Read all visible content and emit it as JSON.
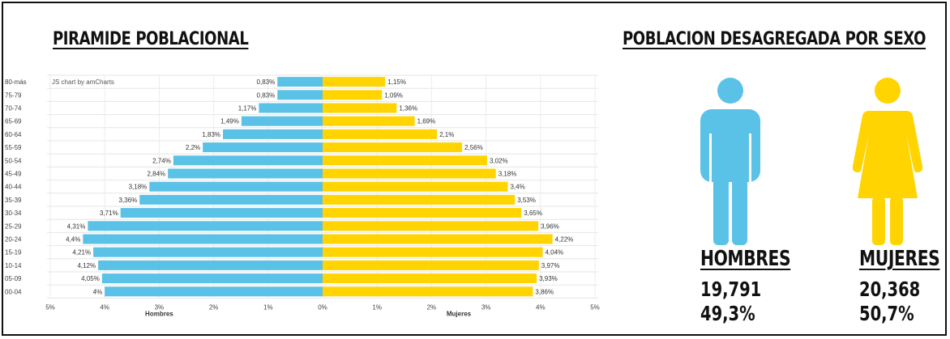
{
  "pyramid_title": "PIRAMIDE POBLACIONAL",
  "sex_title": "POBLACION DESAGREGADA POR SEXO",
  "credit": "JS chart by amCharts",
  "men": {
    "label": "HOMBRES",
    "count": "19,791",
    "percent": "49,3%"
  },
  "women": {
    "label": "MUJERES",
    "count": "20,368",
    "percent": "50,7%"
  },
  "colors": {
    "men": "#5bc2e7",
    "women": "#ffd400"
  },
  "icons": {
    "men": "male-person-icon",
    "women": "female-person-icon"
  },
  "chart_data": {
    "type": "bar",
    "orientation": "horizontal-pyramid",
    "categories": [
      "80-más",
      "75-79",
      "70-74",
      "65-69",
      "60-64",
      "55-59",
      "50-54",
      "45-49",
      "40-44",
      "35-39",
      "30-34",
      "25-29",
      "20-24",
      "15-19",
      "10-14",
      "05-09",
      "00-04"
    ],
    "series": [
      {
        "name": "Hombres",
        "values": [
          0.83,
          0.83,
          1.17,
          1.49,
          1.83,
          2.2,
          2.74,
          2.84,
          3.18,
          3.36,
          3.71,
          4.31,
          4.4,
          4.21,
          4.12,
          4.05,
          4.0
        ],
        "labels": [
          "0,83%",
          "0,83%",
          "1,17%",
          "1,49%",
          "1,83%",
          "2,2%",
          "2,74%",
          "2,84%",
          "3,18%",
          "3,36%",
          "3,71%",
          "4,31%",
          "4,4%",
          "4,21%",
          "4,12%",
          "4,05%",
          "4%"
        ]
      },
      {
        "name": "Mujeres",
        "values": [
          1.15,
          1.09,
          1.36,
          1.69,
          2.1,
          2.56,
          3.02,
          3.18,
          3.4,
          3.53,
          3.65,
          3.96,
          4.22,
          4.04,
          3.97,
          3.93,
          3.86
        ],
        "labels": [
          "1,15%",
          "1,09%",
          "1,36%",
          "1,69%",
          "2,1%",
          "2,56%",
          "3,02%",
          "3,18%",
          "3,4%",
          "3,53%",
          "3,65%",
          "3,96%",
          "4,22%",
          "4,04%",
          "3,97%",
          "3,93%",
          "3,86%"
        ]
      }
    ],
    "xlim": [
      -5,
      5
    ],
    "x_ticks": [
      "5%",
      "4%",
      "3%",
      "2%",
      "1%",
      "0%",
      "1%",
      "2%",
      "3%",
      "4%",
      "5%"
    ],
    "grid": true
  }
}
